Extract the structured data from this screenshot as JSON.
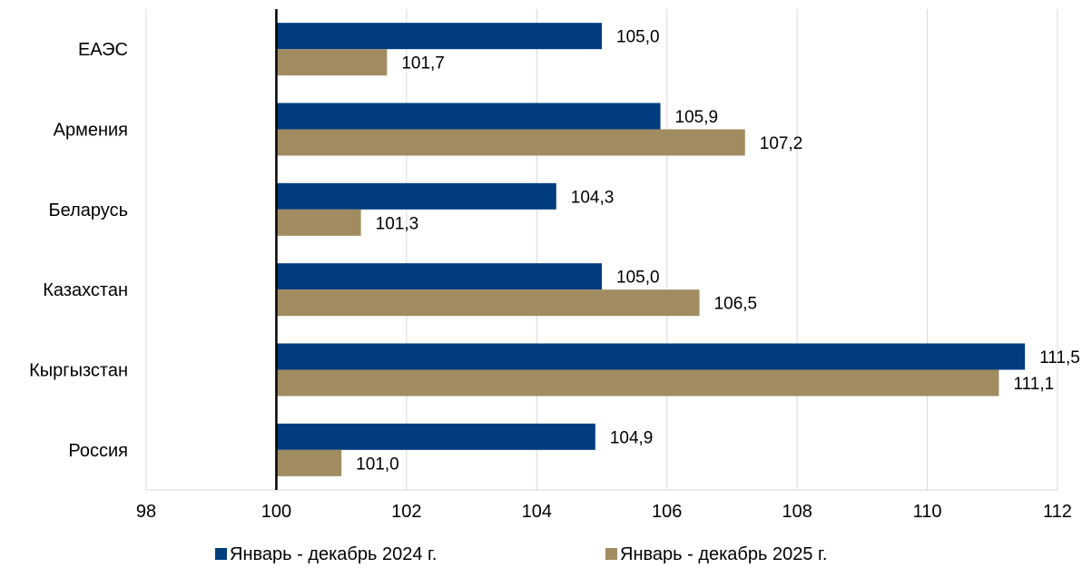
{
  "chart_data": {
    "type": "bar",
    "orientation": "horizontal",
    "categories": [
      "ЕАЭС",
      "Армения",
      "Беларусь",
      "Казахстан",
      "Кыргызстан",
      "Россия"
    ],
    "category_labels": [
      "ЕАЭС",
      "Армения",
      "Беларусь",
      "Казахстан",
      "Кыргызстан",
      "Россия"
    ],
    "series": [
      {
        "name": "Январь - декабрь 2024 г.",
        "color": "#003C7E",
        "values": [
          105.0,
          105.9,
          104.3,
          105.0,
          111.5,
          104.9
        ],
        "value_labels": [
          "105,0",
          "105,9",
          "104,3",
          "105,0",
          "111,5",
          "104,9"
        ]
      },
      {
        "name": "Январь - декабрь 2025 г.",
        "color": "#A08C60",
        "values": [
          101.7,
          107.2,
          101.3,
          106.5,
          111.1,
          101.0
        ],
        "value_labels": [
          "101,7",
          "107,2",
          "101,3",
          "106,5",
          "111,1",
          "101,0"
        ]
      }
    ],
    "xlim": [
      98,
      112
    ],
    "baseline": 100,
    "ticks": [
      98,
      100,
      102,
      104,
      106,
      108,
      110,
      112
    ],
    "tick_labels": [
      "98",
      "100",
      "102",
      "104",
      "106",
      "108",
      "110",
      "112"
    ],
    "grid": true,
    "legend_position": "bottom"
  }
}
